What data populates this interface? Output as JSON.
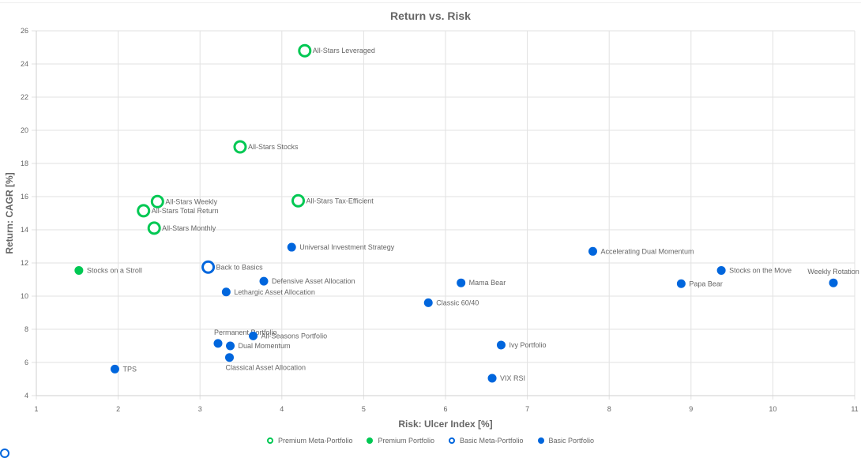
{
  "chart_data": {
    "type": "scatter",
    "title": "Return vs. Risk",
    "xlabel": "Risk: Ulcer Index [%]",
    "ylabel": "Return: CAGR [%]",
    "xlim": [
      1,
      11
    ],
    "ylim": [
      4,
      26
    ],
    "x_ticks": [
      1,
      2,
      3,
      4,
      5,
      6,
      7,
      8,
      9,
      10,
      11
    ],
    "y_ticks": [
      4,
      6,
      8,
      10,
      12,
      14,
      16,
      18,
      20,
      22,
      24,
      26
    ],
    "grid": true,
    "legend_position": "bottom",
    "series": [
      {
        "name": "Premium Meta-Portfolio",
        "color": "#00c853",
        "marker": "hollow-circle",
        "points": [
          {
            "label": "All-Stars Leveraged",
            "x": 4.28,
            "y": 24.8
          },
          {
            "label": "All-Stars Stocks",
            "x": 3.49,
            "y": 19.0
          },
          {
            "label": "All-Stars Tax-Efficient",
            "x": 4.2,
            "y": 15.75
          },
          {
            "label": "All-Stars Weekly",
            "x": 2.48,
            "y": 15.7
          },
          {
            "label": "All-Stars Total Return",
            "x": 2.31,
            "y": 15.15
          },
          {
            "label": "All-Stars Monthly",
            "x": 2.44,
            "y": 14.1
          }
        ]
      },
      {
        "name": "Premium Portfolio",
        "color": "#00c853",
        "marker": "filled-circle",
        "points": [
          {
            "label": "Stocks on a Stroll",
            "x": 1.52,
            "y": 11.55
          }
        ]
      },
      {
        "name": "Basic Meta-Portfolio",
        "color": "#0066dd",
        "marker": "hollow-circle",
        "points": [
          {
            "label": "Back to Basics",
            "x": 3.1,
            "y": 11.75
          }
        ]
      },
      {
        "name": "Basic Portfolio",
        "color": "#0066dd",
        "marker": "filled-circle",
        "points": [
          {
            "label": "Universal Investment Strategy",
            "x": 4.12,
            "y": 12.95
          },
          {
            "label": "Accelerating Dual Momentum",
            "x": 7.8,
            "y": 12.7
          },
          {
            "label": "Stocks on the Move",
            "x": 9.37,
            "y": 11.55
          },
          {
            "label": "Weekly Rotation",
            "x": 10.74,
            "y": 10.8
          },
          {
            "label": "Papa Bear",
            "x": 8.88,
            "y": 10.75
          },
          {
            "label": "Mama Bear",
            "x": 6.19,
            "y": 10.8
          },
          {
            "label": "Defensive Asset Allocation",
            "x": 3.78,
            "y": 10.9
          },
          {
            "label": "Lethargic Asset Allocation",
            "x": 3.32,
            "y": 10.25
          },
          {
            "label": "Classic 60/40",
            "x": 5.79,
            "y": 9.6
          },
          {
            "label": "Permanent Portfolio",
            "x": 3.22,
            "y": 7.15
          },
          {
            "label": "All-Seasons Portfolio",
            "x": 3.65,
            "y": 7.6
          },
          {
            "label": "Dual Momentum",
            "x": 3.37,
            "y": 7.0
          },
          {
            "label": "Classical Asset Allocation",
            "x": 3.36,
            "y": 6.3
          },
          {
            "label": "Ivy Portfolio",
            "x": 6.68,
            "y": 7.05
          },
          {
            "label": "VIX RSI",
            "x": 6.57,
            "y": 5.05
          },
          {
            "label": "TPS",
            "x": 1.96,
            "y": 5.6
          }
        ]
      }
    ]
  },
  "legend": [
    {
      "label": "Premium Meta-Portfolio",
      "color": "#00c853",
      "hollow": true
    },
    {
      "label": "Premium Portfolio",
      "color": "#00c853",
      "hollow": false
    },
    {
      "label": "Basic Meta-Portfolio",
      "color": "#0066dd",
      "hollow": true
    },
    {
      "label": "Basic Portfolio",
      "color": "#0066dd",
      "hollow": false
    }
  ]
}
